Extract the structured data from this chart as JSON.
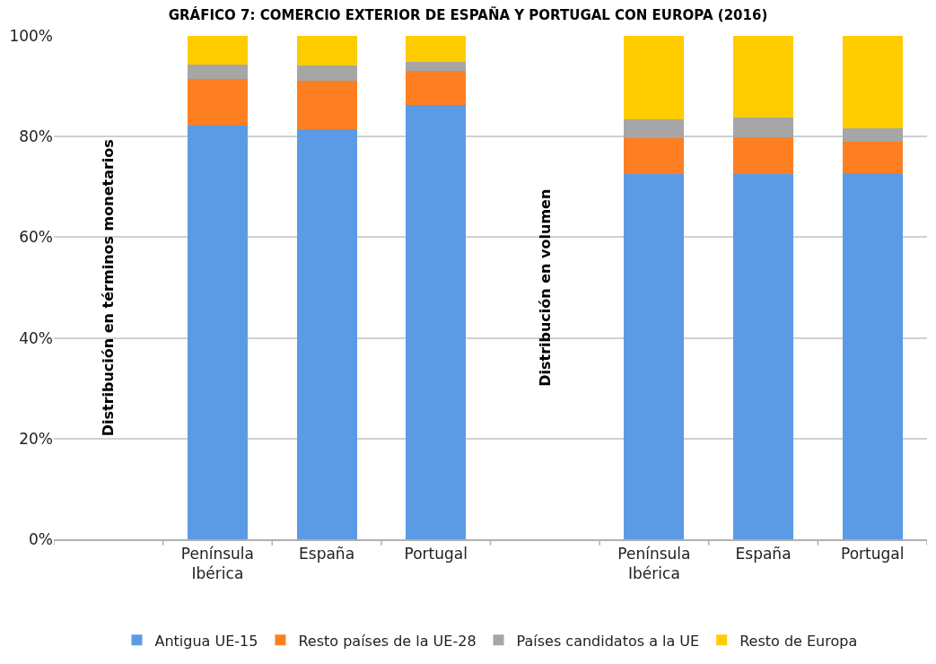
{
  "chart_data": {
    "type": "bar",
    "stacked": true,
    "title": "GRÁFICO 7: COMERCIO EXTERIOR DE ESPAÑA Y PORTUGAL CON EUROPA (2016)",
    "categories": [
      null,
      "Península Ibérica",
      "España",
      "Portugal",
      null,
      "Península Ibérica",
      "España",
      "Portugal"
    ],
    "series": [
      {
        "name": "Antigua UE-15",
        "color": "#5b9be6",
        "values": [
          null,
          82.2,
          81.5,
          86.2,
          null,
          72.6,
          72.6,
          72.8
        ]
      },
      {
        "name": "Resto países de la UE-28",
        "color": "#fe7f22",
        "values": [
          null,
          9.2,
          9.6,
          6.9,
          null,
          7.1,
          7.2,
          6.1
        ]
      },
      {
        "name": "Países candidatos a la UE",
        "color": "#a6a6a6",
        "values": [
          null,
          2.9,
          3.1,
          1.7,
          null,
          3.7,
          3.9,
          2.7
        ]
      },
      {
        "name": "Resto de Europa",
        "color": "#ffcc00",
        "values": [
          null,
          5.7,
          5.8,
          5.2,
          null,
          16.6,
          16.3,
          18.4
        ]
      }
    ],
    "annotations": [
      "Distribución en términos monetarios",
      "Distribución en volumen"
    ],
    "ylim": [
      0,
      100
    ],
    "yticks": [
      {
        "value": 0,
        "label": "0%"
      },
      {
        "value": 20,
        "label": "20%"
      },
      {
        "value": 40,
        "label": "40%"
      },
      {
        "value": 60,
        "label": "60%"
      },
      {
        "value": 80,
        "label": "80%"
      },
      {
        "value": 100,
        "label": "100%"
      }
    ],
    "grid": "y",
    "legend": "bottom"
  }
}
